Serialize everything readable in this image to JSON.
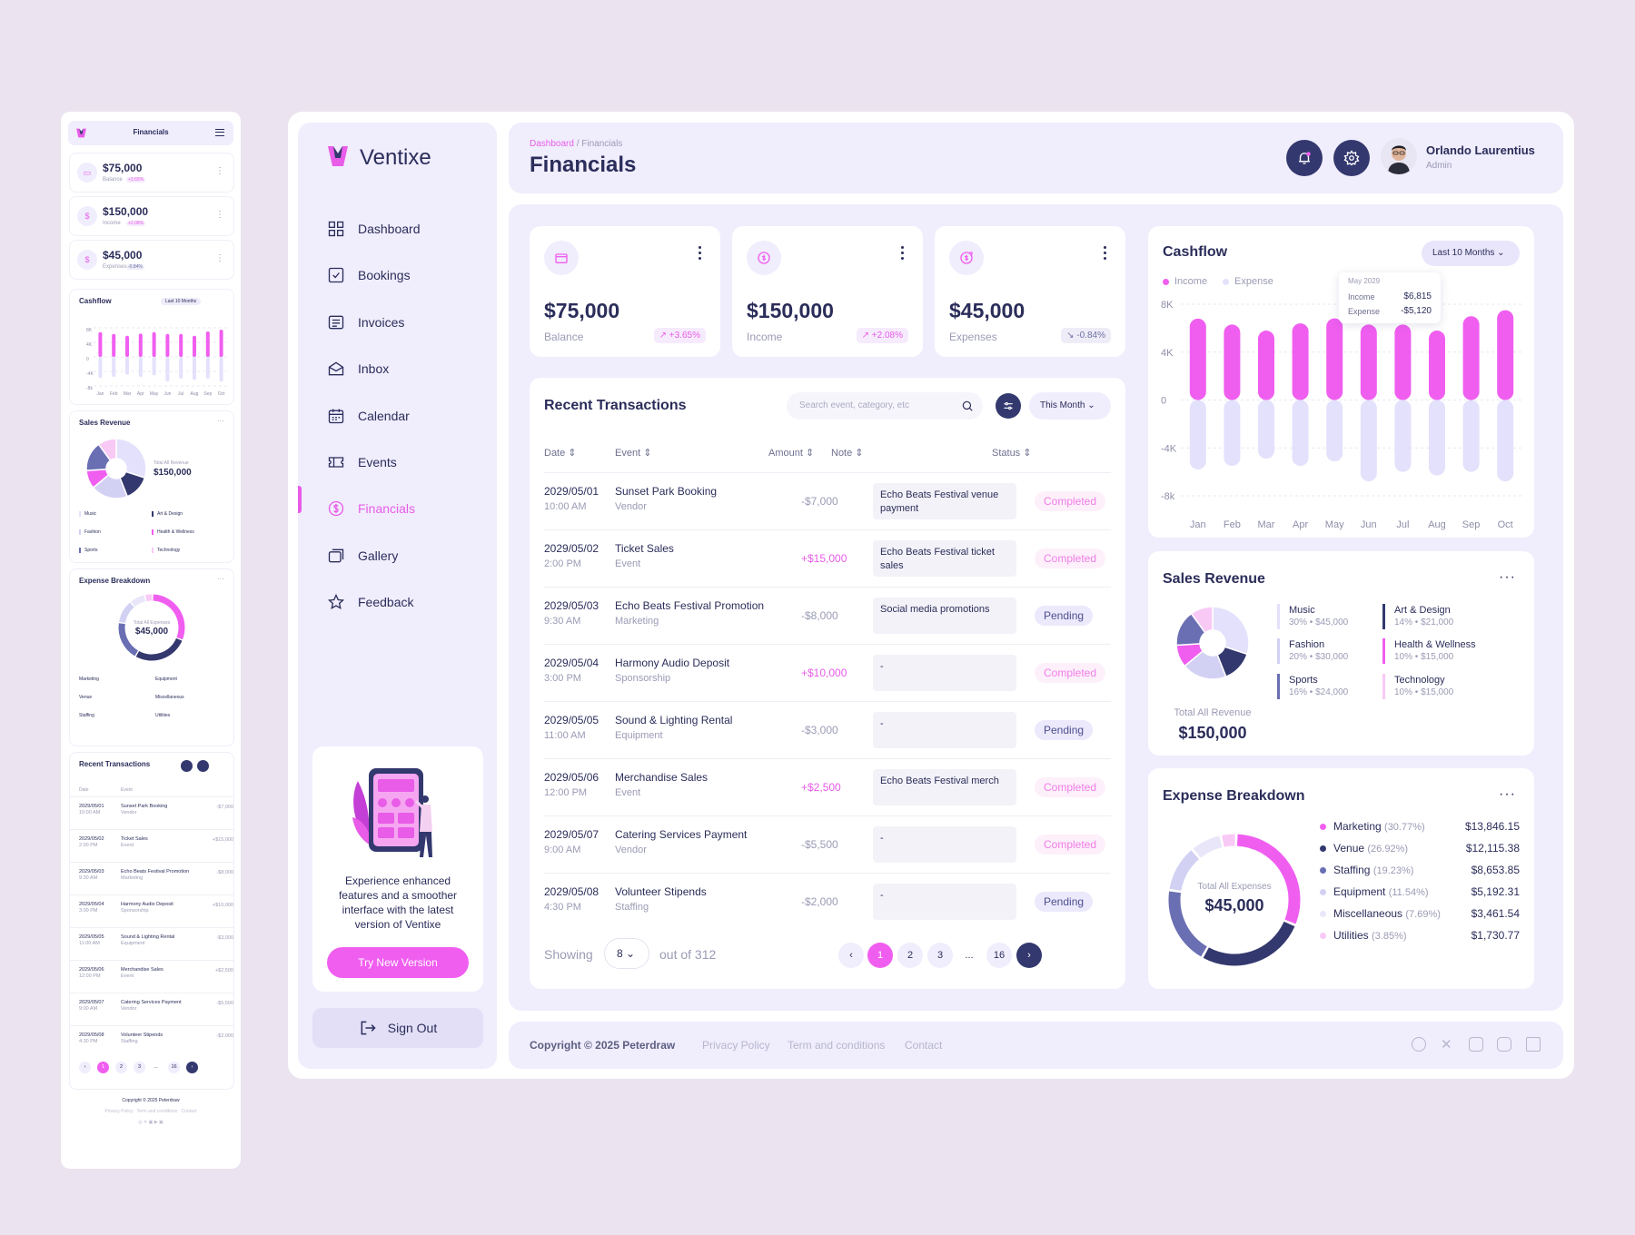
{
  "app": {
    "name": "Ventixe"
  },
  "colors": {
    "accent": "#f05ef0",
    "dark": "#33386e",
    "panel": "#f0edfd",
    "muted": "#9a9bb5"
  },
  "mobile": {
    "title": "Financials",
    "stats": [
      {
        "value": "$75,000",
        "label": "Balance",
        "change": "+3.65%"
      },
      {
        "value": "$150,000",
        "label": "Income",
        "change": "+2.08%"
      },
      {
        "value": "$45,000",
        "label": "Expenses",
        "change": "-0.84%"
      }
    ],
    "cashflow_title": "Cashflow",
    "range": "Last 10 Months",
    "sales_title": "Sales Revenue",
    "sales_total_label": "Total All Revenue",
    "sales_total": "$150,000",
    "expense_title": "Expense Breakdown",
    "expense_total_label": "Total All Expenses",
    "expense_total": "$45,000",
    "tx_title": "Recent Transactions",
    "copyright": "Copyright © 2025 Peterdraw",
    "links": "Privacy Policy   Term and conditions   Contact"
  },
  "nav": {
    "items": [
      {
        "label": "Dashboard",
        "icon": "grid-icon"
      },
      {
        "label": "Bookings",
        "icon": "checkbox-icon"
      },
      {
        "label": "Invoices",
        "icon": "invoice-icon"
      },
      {
        "label": "Inbox",
        "icon": "envelope-icon"
      },
      {
        "label": "Calendar",
        "icon": "calendar-icon"
      },
      {
        "label": "Events",
        "icon": "ticket-icon"
      },
      {
        "label": "Financials",
        "icon": "dollar-icon"
      },
      {
        "label": "Gallery",
        "icon": "gallery-icon"
      },
      {
        "label": "Feedback",
        "icon": "star-icon"
      }
    ],
    "active": "Financials"
  },
  "promo": {
    "text": "Experience enhanced features and a smoother interface with the latest version of Ventixe",
    "button": "Try New Version"
  },
  "signout": "Sign Out",
  "header": {
    "breadcrumb_root": "Dashboard",
    "breadcrumb_sep": "/",
    "breadcrumb_current": "Financials",
    "title": "Financials",
    "user_name": "Orlando Laurentius",
    "user_role": "Admin"
  },
  "stats": [
    {
      "value": "$75,000",
      "label": "Balance",
      "change": "+3.65%",
      "icon": "wallet-icon"
    },
    {
      "value": "$150,000",
      "label": "Income",
      "change": "+2.08%",
      "icon": "income-icon"
    },
    {
      "value": "$45,000",
      "label": "Expenses",
      "change": "-0.84%",
      "icon": "expense-icon"
    }
  ],
  "transactions": {
    "title": "Recent Transactions",
    "search_placeholder": "Search event, category, etc",
    "period": "This Month",
    "columns": [
      "Date",
      "Event",
      "Amount",
      "Note",
      "Status"
    ],
    "rows": [
      {
        "date": "2029/05/01",
        "time": "10:00 AM",
        "event": "Sunset Park Booking",
        "category": "Vendor",
        "amount": "-$7,000",
        "note": "Echo Beats Festival venue payment",
        "status": "Completed"
      },
      {
        "date": "2029/05/02",
        "time": "2:00 PM",
        "event": "Ticket Sales",
        "category": "Event",
        "amount": "+$15,000",
        "note": "Echo Beats Festival ticket sales",
        "status": "Completed"
      },
      {
        "date": "2029/05/03",
        "time": "9:30 AM",
        "event": "Echo Beats Festival Promotion",
        "category": "Marketing",
        "amount": "-$8,000",
        "note": "Social media promotions",
        "status": "Pending"
      },
      {
        "date": "2029/05/04",
        "time": "3:00 PM",
        "event": "Harmony Audio Deposit",
        "category": "Sponsorship",
        "amount": "+$10,000",
        "note": "-",
        "status": "Completed"
      },
      {
        "date": "2029/05/05",
        "time": "11:00 AM",
        "event": "Sound & Lighting Rental",
        "category": "Equipment",
        "amount": "-$3,000",
        "note": "-",
        "status": "Pending"
      },
      {
        "date": "2029/05/06",
        "time": "12:00 PM",
        "event": "Merchandise Sales",
        "category": "Event",
        "amount": "+$2,500",
        "note": "Echo Beats Festival merch",
        "status": "Completed"
      },
      {
        "date": "2029/05/07",
        "time": "9:00 AM",
        "event": "Catering Services Payment",
        "category": "Vendor",
        "amount": "-$5,500",
        "note": "-",
        "status": "Completed"
      },
      {
        "date": "2029/05/08",
        "time": "4:30 PM",
        "event": "Volunteer Stipends",
        "category": "Staffing",
        "amount": "-$2,000",
        "note": "-",
        "status": "Pending"
      }
    ],
    "showing_label": "Showing",
    "per_page": "8",
    "out_of": "out of 312",
    "pages": [
      "1",
      "2",
      "3",
      "...",
      "16"
    ]
  },
  "cashflow": {
    "title": "Cashflow",
    "range": "Last 10 Months",
    "legend": [
      "Income",
      "Expense"
    ],
    "tooltip": {
      "month": "May 2029",
      "income_label": "Income",
      "income": "$6,815",
      "expense_label": "Expense",
      "expense": "-$5,120"
    }
  },
  "sales": {
    "title": "Sales Revenue",
    "total_label": "Total All Revenue",
    "total": "$150,000",
    "items": [
      {
        "name": "Music",
        "detail": "30% • $45,000",
        "color": "#e3e1fb"
      },
      {
        "name": "Art & Design",
        "detail": "14% • $21,000",
        "color": "#33386e"
      },
      {
        "name": "Fashion",
        "detail": "20% • $30,000",
        "color": "#d3d1f3"
      },
      {
        "name": "Health & Wellness",
        "detail": "10% • $15,000",
        "color": "#f05ef0"
      },
      {
        "name": "Sports",
        "detail": "16% • $24,000",
        "color": "#6a6fb3"
      },
      {
        "name": "Technology",
        "detail": "10% • $15,000",
        "color": "#f9c9f6"
      }
    ]
  },
  "expenses": {
    "title": "Expense Breakdown",
    "total_label": "Total All Expenses",
    "total": "$45,000",
    "items": [
      {
        "name": "Marketing",
        "pct": "(30.77%)",
        "value": "$13,846.15",
        "color": "#f05ef0"
      },
      {
        "name": "Venue",
        "pct": "(26.92%)",
        "value": "$12,115.38",
        "color": "#33386e"
      },
      {
        "name": "Staffing",
        "pct": "(19.23%)",
        "value": "$8,653.85",
        "color": "#6a6fb3"
      },
      {
        "name": "Equipment",
        "pct": "(11.54%)",
        "value": "$5,192.31",
        "color": "#d3d1f3"
      },
      {
        "name": "Miscellaneous",
        "pct": "(7.69%)",
        "value": "$3,461.54",
        "color": "#e8e6f8"
      },
      {
        "name": "Utilities",
        "pct": "(3.85%)",
        "value": "$1,730.77",
        "color": "#f9c9f6"
      }
    ]
  },
  "footer": {
    "copyright": "Copyright © 2025 Peterdraw",
    "links": [
      "Privacy Policy",
      "Term and conditions",
      "Contact"
    ],
    "social": [
      "facebook-icon",
      "x-icon",
      "instagram-icon",
      "youtube-icon",
      "linkedin-icon"
    ]
  },
  "chart_data": {
    "type": "bar",
    "title": "Cashflow",
    "categories": [
      "Jan",
      "Feb",
      "Mar",
      "Apr",
      "May",
      "Jun",
      "Jul",
      "Aug",
      "Sep",
      "Oct"
    ],
    "series": [
      {
        "name": "Income",
        "values": [
          6800,
          6300,
          5800,
          6400,
          6815,
          6300,
          6300,
          5800,
          7000,
          7500
        ],
        "color": "#f05ef0"
      },
      {
        "name": "Expense",
        "values": [
          -5800,
          -5500,
          -4900,
          -5500,
          -5120,
          -6800,
          -6000,
          -6300,
          -6000,
          -6800
        ],
        "color": "#e3e1fb"
      }
    ],
    "yticks": [
      "8K",
      "4K",
      "0",
      "-4K",
      "-8k"
    ],
    "ylim": [
      -8000,
      8000
    ],
    "legend": "top-left",
    "grid": true
  }
}
